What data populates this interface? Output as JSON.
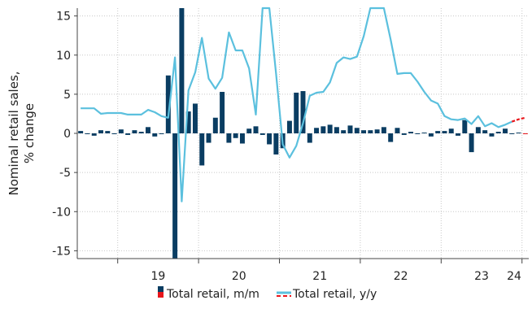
{
  "chart_data": {
    "type": "bar+line",
    "ylabel": "Nominal retail sales,\n% change",
    "ylim": [
      -16,
      16
    ],
    "yticks": [
      -15,
      -10,
      -5,
      0,
      5,
      10,
      15
    ],
    "x_tick_labels": [
      "19",
      "20",
      "21",
      "22",
      "23",
      "24"
    ],
    "grid": true,
    "legend_position": "bottom",
    "colors": {
      "mm_actual": "#0a3d62",
      "mm_forecast": "#e8161b",
      "yy_actual": "#5bc0de",
      "yy_forecast": "#e8161b",
      "grid": "#c8c8c8",
      "axis": "#444444"
    },
    "legend": {
      "mm_label": "Total retail, m/m",
      "yy_label": "Total retail, y/y"
    },
    "months": [
      "2018-07",
      "2018-08",
      "2018-09",
      "2018-10",
      "2018-11",
      "2018-12",
      "2019-01",
      "2019-02",
      "2019-03",
      "2019-04",
      "2019-05",
      "2019-06",
      "2019-07",
      "2019-08",
      "2019-09",
      "2019-10",
      "2019-11",
      "2019-12",
      "2020-01",
      "2020-02",
      "2020-03",
      "2020-04",
      "2020-05",
      "2020-06",
      "2020-07",
      "2020-08",
      "2020-09",
      "2020-10",
      "2020-11",
      "2020-12",
      "2021-01",
      "2021-02",
      "2021-03",
      "2021-04",
      "2021-05",
      "2021-06",
      "2021-07",
      "2021-08",
      "2021-09",
      "2021-10",
      "2021-11",
      "2021-12",
      "2022-01",
      "2022-02",
      "2022-03",
      "2022-04",
      "2022-05",
      "2022-06",
      "2022-07",
      "2022-08",
      "2022-09",
      "2022-10",
      "2022-11",
      "2022-12",
      "2023-01",
      "2023-02",
      "2023-03",
      "2023-04",
      "2023-05",
      "2023-06",
      "2023-07",
      "2023-08",
      "2023-09",
      "2023-10",
      "2023-11",
      "2023-12",
      "2024-01"
    ],
    "series": [
      {
        "name": "Total retail, m/m",
        "kind": "bar",
        "values": [
          0.3,
          -0.1,
          -0.3,
          0.4,
          0.3,
          -0.1,
          0.5,
          -0.2,
          0.4,
          0.2,
          0.8,
          -0.4,
          0.0,
          7.4,
          -16.5,
          16.5,
          2.8,
          3.8,
          -4.1,
          -1.2,
          2.0,
          5.3,
          -1.2,
          -0.6,
          -1.3,
          0.6,
          0.9,
          -0.2,
          -1.4,
          -2.7,
          -1.9,
          1.6,
          5.2,
          5.4,
          -1.2,
          0.7,
          0.9,
          1.1,
          0.8,
          0.4,
          1.0,
          0.7,
          0.4,
          0.4,
          0.5,
          0.8,
          -1.1,
          0.7,
          -0.2,
          0.2,
          -0.1,
          0.1,
          -0.4,
          0.3,
          0.3,
          0.6,
          -0.3,
          1.7,
          -2.4,
          0.8,
          0.4,
          -0.4,
          0.2,
          0.6,
          0.0,
          0.1,
          0.0
        ]
      },
      {
        "name": "Total retail, y/y",
        "kind": "line",
        "values": [
          3.2,
          3.2,
          3.2,
          2.5,
          2.6,
          2.6,
          2.6,
          2.4,
          2.4,
          2.4,
          3.0,
          2.7,
          2.2,
          2.0,
          9.7,
          -8.7,
          5.5,
          7.8,
          12.2,
          7.0,
          5.7,
          7.1,
          12.9,
          10.6,
          10.6,
          8.3,
          2.4,
          20.0,
          20.0,
          7.6,
          -1.4,
          -3.1,
          -1.6,
          1.3,
          4.8,
          5.2,
          5.3,
          6.5,
          9.0,
          9.7,
          9.5,
          9.8,
          12.4,
          16.8,
          20.0,
          20.0,
          12.0,
          7.6,
          7.7,
          7.7,
          6.6,
          5.3,
          4.2,
          3.8,
          2.2,
          1.8,
          1.7,
          1.9,
          1.2,
          2.2,
          0.9,
          1.3,
          0.8,
          1.1,
          1.5,
          1.8,
          2.0
        ]
      }
    ],
    "forecast_from_index": 64
  }
}
